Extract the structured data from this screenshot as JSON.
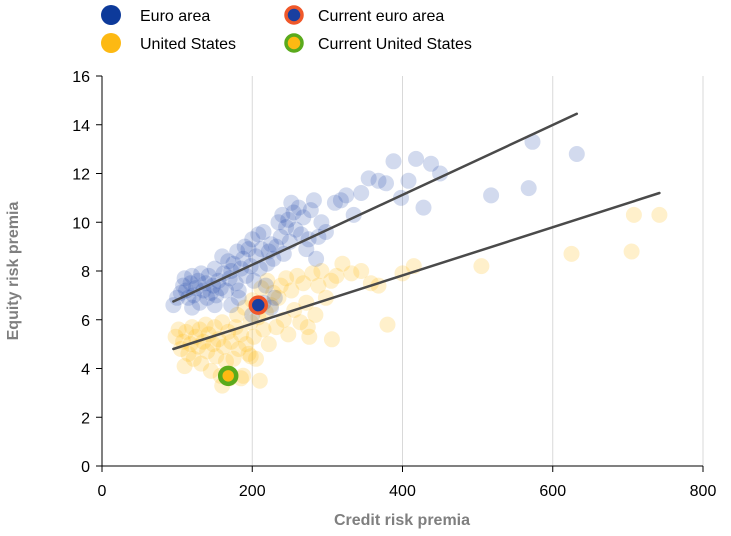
{
  "chart_data": {
    "type": "scatter",
    "xlabel": "Credit risk premia",
    "ylabel": "Equity risk premia",
    "xlim": [
      0,
      800
    ],
    "ylim": [
      0,
      16
    ],
    "xticks": [
      0,
      200,
      400,
      600,
      800
    ],
    "yticks": [
      0,
      2,
      4,
      6,
      8,
      10,
      12,
      14,
      16
    ],
    "grid": "vertical",
    "legend": {
      "placement": "top-left",
      "entries": [
        {
          "label": "Euro area",
          "marker": "dot",
          "color": "#0d3a9a"
        },
        {
          "label": "Current euro area",
          "marker": "ring",
          "color": "#1a3fa0",
          "ring_color": "#f0582a"
        },
        {
          "label": "United States",
          "marker": "dot",
          "color": "#fdb913"
        },
        {
          "label": "Current United States",
          "marker": "ring",
          "color": "#fdb913",
          "ring_color": "#5aaa1c"
        }
      ]
    },
    "series": [
      {
        "name": "Euro area",
        "color": "#1c45a8",
        "points": [
          [
            95,
            6.6
          ],
          [
            100,
            6.9
          ],
          [
            105,
            7.1
          ],
          [
            108,
            7.4
          ],
          [
            110,
            7.7
          ],
          [
            112,
            7.2
          ],
          [
            115,
            6.9
          ],
          [
            118,
            7.5
          ],
          [
            120,
            7.8
          ],
          [
            122,
            7.0
          ],
          [
            125,
            7.3
          ],
          [
            128,
            7.6
          ],
          [
            130,
            6.7
          ],
          [
            132,
            7.9
          ],
          [
            135,
            7.2
          ],
          [
            138,
            7.5
          ],
          [
            140,
            6.9
          ],
          [
            142,
            7.8
          ],
          [
            145,
            7.1
          ],
          [
            148,
            7.4
          ],
          [
            150,
            8.1
          ],
          [
            152,
            7.0
          ],
          [
            155,
            7.6
          ],
          [
            158,
            7.3
          ],
          [
            160,
            8.6
          ],
          [
            162,
            7.9
          ],
          [
            165,
            7.2
          ],
          [
            168,
            8.4
          ],
          [
            170,
            7.7
          ],
          [
            172,
            8.0
          ],
          [
            175,
            8.3
          ],
          [
            178,
            7.5
          ],
          [
            180,
            8.8
          ],
          [
            182,
            7.2
          ],
          [
            185,
            8.1
          ],
          [
            188,
            8.5
          ],
          [
            190,
            9.0
          ],
          [
            192,
            7.8
          ],
          [
            195,
            8.9
          ],
          [
            198,
            8.2
          ],
          [
            200,
            9.3
          ],
          [
            202,
            7.6
          ],
          [
            205,
            8.6
          ],
          [
            208,
            9.5
          ],
          [
            210,
            8.1
          ],
          [
            212,
            8.9
          ],
          [
            215,
            9.6
          ],
          [
            218,
            7.4
          ],
          [
            220,
            8.3
          ],
          [
            222,
            8.8
          ],
          [
            225,
            9.1
          ],
          [
            228,
            8.5
          ],
          [
            232,
            9.0
          ],
          [
            235,
            10.0
          ],
          [
            238,
            9.4
          ],
          [
            240,
            10.3
          ],
          [
            242,
            8.7
          ],
          [
            245,
            9.8
          ],
          [
            248,
            10.1
          ],
          [
            250,
            9.2
          ],
          [
            252,
            10.8
          ],
          [
            255,
            10.4
          ],
          [
            258,
            9.7
          ],
          [
            262,
            10.6
          ],
          [
            265,
            9.5
          ],
          [
            268,
            10.2
          ],
          [
            272,
            8.9
          ],
          [
            275,
            9.3
          ],
          [
            278,
            10.5
          ],
          [
            282,
            10.9
          ],
          [
            285,
            8.5
          ],
          [
            288,
            9.4
          ],
          [
            292,
            10.0
          ],
          [
            298,
            9.6
          ],
          [
            310,
            10.8
          ],
          [
            318,
            10.9
          ],
          [
            325,
            11.1
          ],
          [
            335,
            10.3
          ],
          [
            345,
            11.2
          ],
          [
            355,
            11.8
          ],
          [
            368,
            11.7
          ],
          [
            378,
            11.6
          ],
          [
            388,
            12.5
          ],
          [
            398,
            11.0
          ],
          [
            408,
            11.7
          ],
          [
            418,
            12.6
          ],
          [
            428,
            10.6
          ],
          [
            438,
            12.4
          ],
          [
            450,
            12.0
          ],
          [
            518,
            11.1
          ],
          [
            568,
            11.4
          ],
          [
            573,
            13.3
          ],
          [
            632,
            12.8
          ],
          [
            120,
            6.5
          ],
          [
            150,
            6.6
          ],
          [
            172,
            6.6
          ],
          [
            182,
            6.9
          ],
          [
            200,
            6.2
          ],
          [
            215,
            6.7
          ],
          [
            225,
            6.5
          ],
          [
            230,
            6.9
          ]
        ]
      },
      {
        "name": "United States",
        "color": "#fdb913",
        "points": [
          [
            98,
            5.3
          ],
          [
            102,
            5.6
          ],
          [
            105,
            4.8
          ],
          [
            108,
            5.1
          ],
          [
            110,
            4.1
          ],
          [
            112,
            5.5
          ],
          [
            115,
            4.6
          ],
          [
            118,
            5.0
          ],
          [
            120,
            5.7
          ],
          [
            122,
            4.4
          ],
          [
            125,
            5.3
          ],
          [
            128,
            4.9
          ],
          [
            130,
            5.6
          ],
          [
            132,
            4.2
          ],
          [
            135,
            5.1
          ],
          [
            138,
            5.8
          ],
          [
            140,
            4.7
          ],
          [
            142,
            5.4
          ],
          [
            145,
            3.9
          ],
          [
            148,
            5.0
          ],
          [
            150,
            5.7
          ],
          [
            152,
            4.5
          ],
          [
            155,
            5.2
          ],
          [
            158,
            3.7
          ],
          [
            160,
            5.9
          ],
          [
            162,
            4.9
          ],
          [
            165,
            4.3
          ],
          [
            168,
            5.5
          ],
          [
            170,
            3.6
          ],
          [
            172,
            5.1
          ],
          [
            175,
            4.4
          ],
          [
            178,
            5.7
          ],
          [
            180,
            6.2
          ],
          [
            182,
            4.8
          ],
          [
            185,
            5.4
          ],
          [
            188,
            3.7
          ],
          [
            190,
            6.5
          ],
          [
            192,
            5.0
          ],
          [
            195,
            4.6
          ],
          [
            198,
            5.9
          ],
          [
            200,
            6.8
          ],
          [
            202,
            5.3
          ],
          [
            205,
            4.4
          ],
          [
            208,
            6.1
          ],
          [
            210,
            3.5
          ],
          [
            212,
            7.3
          ],
          [
            215,
            5.6
          ],
          [
            218,
            6.3
          ],
          [
            220,
            7.6
          ],
          [
            222,
            5.0
          ],
          [
            225,
            6.6
          ],
          [
            228,
            7.1
          ],
          [
            232,
            5.7
          ],
          [
            235,
            6.9
          ],
          [
            238,
            7.4
          ],
          [
            242,
            6.0
          ],
          [
            245,
            7.7
          ],
          [
            248,
            5.4
          ],
          [
            252,
            7.2
          ],
          [
            256,
            6.4
          ],
          [
            260,
            7.8
          ],
          [
            264,
            5.9
          ],
          [
            268,
            7.5
          ],
          [
            272,
            6.7
          ],
          [
            276,
            5.3
          ],
          [
            280,
            7.9
          ],
          [
            284,
            6.2
          ],
          [
            288,
            7.4
          ],
          [
            292,
            8.0
          ],
          [
            298,
            6.9
          ],
          [
            305,
            7.6
          ],
          [
            312,
            7.8
          ],
          [
            320,
            8.3
          ],
          [
            332,
            7.9
          ],
          [
            345,
            8.0
          ],
          [
            358,
            7.5
          ],
          [
            368,
            7.4
          ],
          [
            380,
            5.8
          ],
          [
            400,
            7.9
          ],
          [
            415,
            8.2
          ],
          [
            505,
            8.2
          ],
          [
            625,
            8.7
          ],
          [
            705,
            8.8
          ],
          [
            708,
            10.3
          ],
          [
            742,
            10.3
          ],
          [
            160,
            3.3
          ],
          [
            185,
            3.6
          ],
          [
            198,
            4.5
          ],
          [
            274,
            5.7
          ],
          [
            306,
            5.2
          ]
        ]
      }
    ],
    "highlights": [
      {
        "name": "Current euro area",
        "x": 208,
        "y": 6.6
      },
      {
        "name": "Current United States",
        "x": 168,
        "y": 3.7
      }
    ],
    "trendlines": [
      {
        "series": "Euro area",
        "from": [
          95,
          6.75
        ],
        "to": [
          632,
          14.45
        ]
      },
      {
        "series": "United States",
        "from": [
          95,
          4.8
        ],
        "to": [
          742,
          11.2
        ]
      }
    ]
  }
}
